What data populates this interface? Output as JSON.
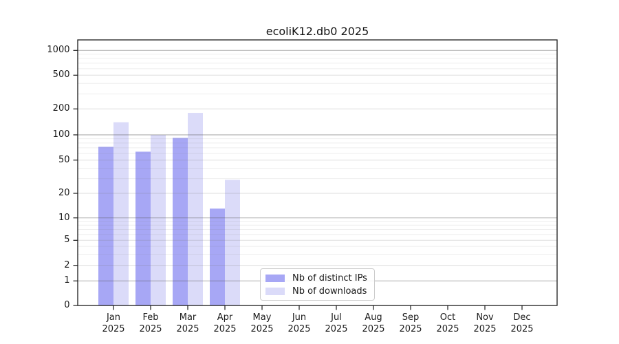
{
  "title": "ecoliK12.db0 2025",
  "chart_data": {
    "type": "bar",
    "title": "ecoliK12.db0 2025",
    "categories": [
      "Jan",
      "Feb",
      "Mar",
      "Apr",
      "May",
      "Jun",
      "Jul",
      "Aug",
      "Sep",
      "Oct",
      "Nov",
      "Dec"
    ],
    "category_year": "2025",
    "series": [
      {
        "name": "Nb of distinct IPs",
        "color": "#a7a7f5",
        "values": [
          72,
          63,
          92,
          13,
          0,
          0,
          0,
          0,
          0,
          0,
          0,
          0
        ]
      },
      {
        "name": "Nb of downloads",
        "color": "#dbdbf9",
        "values": [
          140,
          100,
          180,
          29,
          0,
          0,
          0,
          0,
          0,
          0,
          0,
          0
        ]
      }
    ],
    "y_ticks": [
      0,
      1,
      2,
      5,
      10,
      20,
      50,
      100,
      200,
      500,
      1000
    ],
    "y_scale": "symlog",
    "ylim": [
      0,
      1400
    ],
    "xlabel": "",
    "ylabel": "",
    "grid": true,
    "legend_position": "lower center"
  },
  "legend": {
    "items": [
      {
        "label": "Nb of distinct IPs",
        "color": "#a7a7f5"
      },
      {
        "label": "Nb of downloads",
        "color": "#dbdbf9"
      }
    ]
  },
  "colors": {
    "distinct_ips": "#a7a7f5",
    "downloads": "#dbdbf9",
    "axis": "#1a1a1a",
    "grid_major": "#b2b2b2",
    "grid_mid": "#dddddd",
    "grid_minor": "#ececec",
    "background": "#ffffff"
  }
}
